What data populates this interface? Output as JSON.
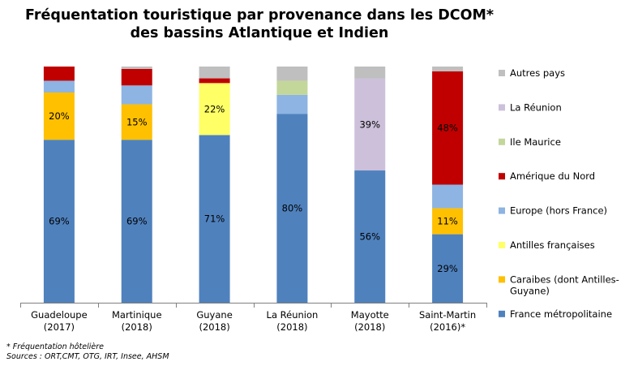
{
  "chart_data": {
    "type": "bar",
    "stacked": true,
    "title_lines": [
      "Fréquentation touristique par provenance dans les DCOM*",
      "des bassins Atlantique et Indien"
    ],
    "categories": [
      [
        "Guadeloupe",
        "(2017)"
      ],
      [
        "Martinique",
        "(2018)"
      ],
      [
        "Guyane",
        "(2018)"
      ],
      [
        "La Réunion",
        "(2018)"
      ],
      [
        "Mayotte",
        "(2018)"
      ],
      [
        "Saint-Martin",
        "(2016)*"
      ]
    ],
    "ylim": [
      0,
      100
    ],
    "grid": false,
    "legend_position": "right",
    "series": [
      {
        "name": "France métropolitaine",
        "color": "#4F81BD",
        "values": [
          69,
          69,
          71,
          80,
          56,
          29
        ],
        "labels": [
          "69%",
          "69%",
          "71%",
          "80%",
          "56%",
          "29%"
        ]
      },
      {
        "name": [
          "Caraibes (dont Antilles-",
          "Guyane)"
        ],
        "color": "#FFC000",
        "values": [
          20,
          15,
          0,
          0,
          0,
          11
        ],
        "labels": [
          "20%",
          "15%",
          "",
          "",
          "",
          "11%"
        ]
      },
      {
        "name": "Antilles françaises",
        "color": "#FFFF66",
        "values": [
          0,
          0,
          22,
          0,
          0,
          0
        ],
        "labels": [
          "",
          "",
          "22%",
          "",
          "",
          ""
        ]
      },
      {
        "name": "Europe (hors France)",
        "color": "#8DB4E2",
        "values": [
          5,
          8,
          0,
          8,
          0,
          10
        ],
        "labels": [
          "",
          "",
          "",
          "",
          "",
          ""
        ]
      },
      {
        "name": "Amérique du Nord",
        "color": "#C00000",
        "values": [
          6,
          7,
          2,
          0,
          0,
          48
        ],
        "labels": [
          "",
          "",
          "",
          "",
          "",
          "48%"
        ]
      },
      {
        "name": "Ile Maurice",
        "color": "#C4D79B",
        "values": [
          0,
          0,
          0,
          6,
          0,
          0
        ],
        "labels": [
          "",
          "",
          "",
          "",
          "",
          ""
        ]
      },
      {
        "name": "La Réunion",
        "color": "#CCC0DA",
        "values": [
          0,
          0,
          0,
          0,
          39,
          0
        ],
        "labels": [
          "",
          "",
          "",
          "",
          "39%",
          ""
        ]
      },
      {
        "name": "Autres pays",
        "color": "#BFBFBF",
        "values": [
          0,
          1,
          5,
          6,
          5,
          2
        ],
        "labels": [
          "",
          "",
          "",
          "",
          "",
          ""
        ]
      }
    ]
  },
  "notes": {
    "footnote": "* Fréquentation hôtelière",
    "sources": "Sources : ORT,CMT, OTG, IRT, Insee, AHSM"
  }
}
